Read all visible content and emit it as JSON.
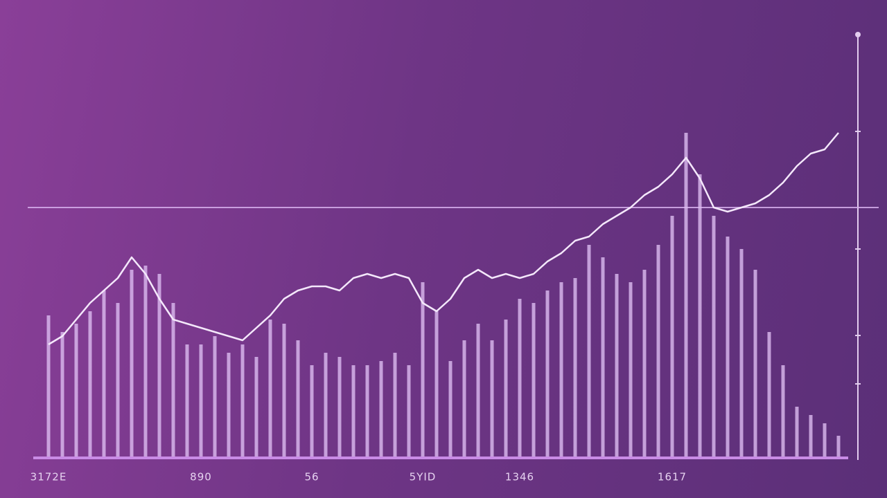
{
  "chart_data": {
    "type": "bar-line",
    "categories": [
      "3172E",
      null,
      null,
      null,
      null,
      null,
      null,
      null,
      null,
      null,
      null,
      "890",
      null,
      null,
      null,
      null,
      null,
      null,
      null,
      "56",
      null,
      null,
      null,
      null,
      null,
      null,
      null,
      "5YID",
      null,
      null,
      null,
      null,
      null,
      null,
      "1346",
      null,
      null,
      null,
      null,
      null,
      null,
      null,
      null,
      null,
      null,
      "1617",
      null,
      null,
      null,
      null,
      null,
      null,
      null,
      null,
      null,
      null,
      null,
      null
    ],
    "bars": {
      "color": "#dcbcf0",
      "values": [
        34,
        30,
        32,
        35,
        40,
        37,
        45,
        46,
        44,
        37,
        27,
        27,
        29,
        25,
        27,
        24,
        33,
        32,
        28,
        22,
        25,
        24,
        22,
        22,
        23,
        25,
        22,
        42,
        35,
        23,
        28,
        32,
        28,
        33,
        38,
        37,
        40,
        42,
        43,
        51,
        48,
        44,
        42,
        45,
        51,
        58,
        78,
        68,
        58,
        53,
        50,
        45,
        30,
        22,
        12,
        10,
        8,
        5
      ]
    },
    "line": {
      "color": "#f4e8fb",
      "values": [
        27,
        29,
        33,
        37,
        40,
        43,
        48,
        44,
        38,
        33,
        32,
        31,
        30,
        29,
        28,
        31,
        34,
        38,
        40,
        41,
        41,
        40,
        43,
        44,
        43,
        44,
        43,
        37,
        35,
        38,
        43,
        45,
        43,
        44,
        43,
        44,
        47,
        49,
        52,
        53,
        56,
        58,
        60,
        63,
        65,
        68,
        72,
        67,
        60,
        59,
        60,
        61,
        63,
        66,
        70,
        73,
        74,
        78
      ]
    },
    "reference_line": 60,
    "ylim": [
      0,
      100
    ]
  }
}
